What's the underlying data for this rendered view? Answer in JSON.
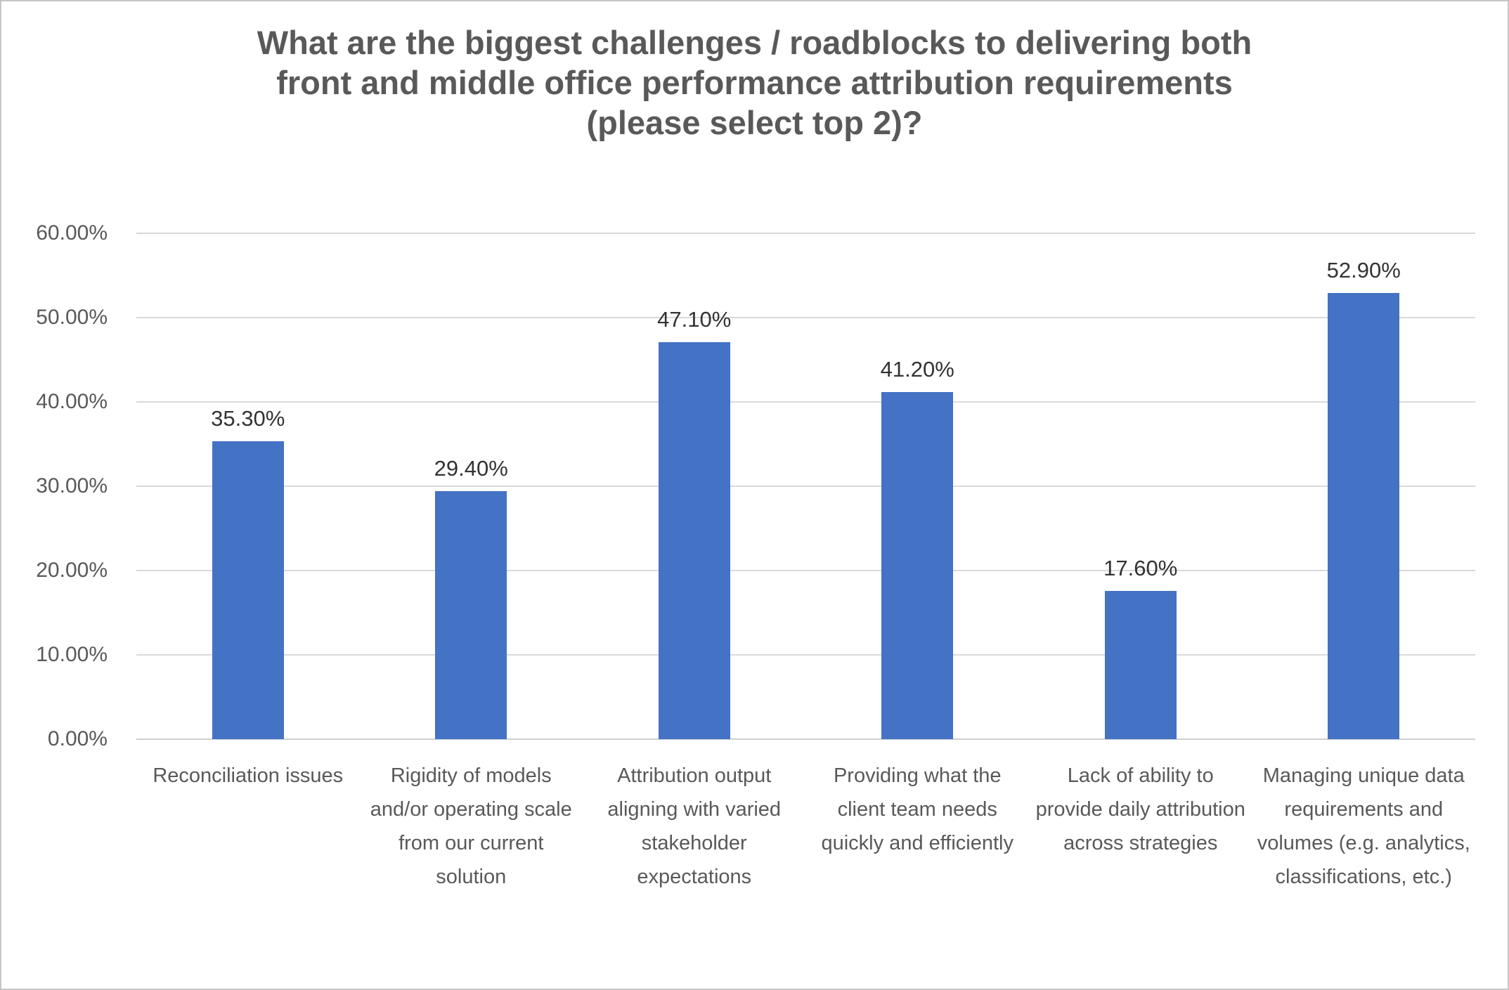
{
  "chart_data": {
    "type": "bar",
    "title": "What are the biggest challenges / roadblocks to delivering both front and middle office performance attribution requirements (please select top 2)?",
    "title_lines": [
      "What are the biggest challenges / roadblocks to delivering both",
      "front and middle office performance attribution requirements",
      "(please select top 2)?"
    ],
    "categories": [
      "Reconciliation issues",
      "Rigidity of models and/or operating scale from our current solution",
      "Attribution output aligning with varied stakeholder expectations",
      "Providing what the client team needs quickly and efficiently",
      "Lack of ability to provide daily attribution across strategies",
      "Managing unique data requirements and volumes (e.g. analytics, classifications, etc.)"
    ],
    "values": [
      35.3,
      29.4,
      47.1,
      41.2,
      17.6,
      52.9
    ],
    "value_labels": [
      "35.30%",
      "29.40%",
      "47.10%",
      "41.20%",
      "17.60%",
      "52.90%"
    ],
    "yticks": [
      "60.00%",
      "50.00%",
      "40.00%",
      "30.00%",
      "20.00%",
      "10.00%",
      "0.00%"
    ],
    "ylim": [
      0,
      60
    ],
    "xlabel": "",
    "ylabel": "",
    "grid": true,
    "legend": "none",
    "bar_color": "#4472C4",
    "gridline_color": "#D9D9D9",
    "title_color": "#595959",
    "axis_label_color": "#595959",
    "value_label_color": "#333333"
  }
}
